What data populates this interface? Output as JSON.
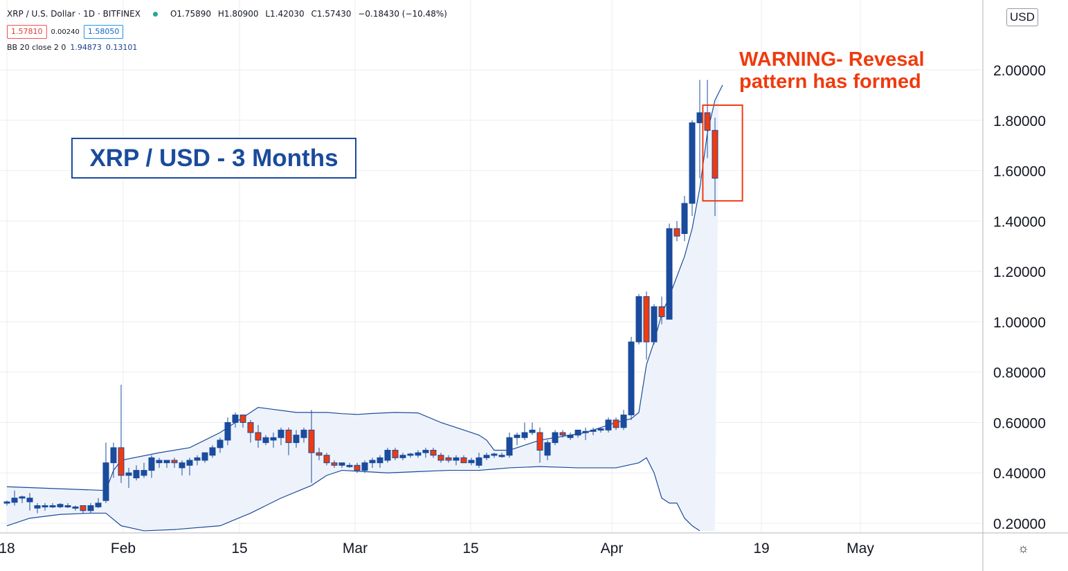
{
  "header": {
    "symbol": "XRP / U.S. Dollar · 1D · BITFINEX",
    "open": "O1.75890",
    "high": "H1.80900",
    "low": "L1.42030",
    "close": "C1.57430",
    "change": "−0.18430 (−10.48%)",
    "bid": "1.57810",
    "spread": "0.00240",
    "ask": "1.58050",
    "indicator_name": "BB 20 close 2 0",
    "indicator_v1": "1.94873",
    "indicator_v2": "0.13101"
  },
  "currency_button": "USD",
  "title_box": "XRP / USD - 3 Months",
  "warning_line1": "WARNING- Revesal",
  "warning_line2": "pattern has formed",
  "colors": {
    "up": "#1a4b9c",
    "down": "#f03a0e",
    "band": "#1a4b9c",
    "band_fill": "#eef3fb",
    "annotation": "#f03a0e"
  },
  "chart_data": {
    "type": "candlestick",
    "ylim": [
      0.17,
      2.27
    ],
    "y_ticks": [
      0.2,
      0.4,
      0.6,
      0.8,
      1.0,
      1.2,
      1.4,
      1.6,
      1.8,
      2.0
    ],
    "y_tick_labels": [
      "0.20000",
      "0.40000",
      "0.60000",
      "0.80000",
      "1.00000",
      "1.20000",
      "1.40000",
      "1.60000",
      "1.80000",
      "2.00000"
    ],
    "x_labels": [
      "18",
      "Feb",
      "15",
      "Mar",
      "15",
      "Apr",
      "19",
      "May"
    ],
    "candles": [
      {
        "o": 0.28,
        "h": 0.29,
        "l": 0.27,
        "c": 0.285
      },
      {
        "o": 0.283,
        "h": 0.33,
        "l": 0.27,
        "c": 0.3
      },
      {
        "o": 0.3,
        "h": 0.31,
        "l": 0.28,
        "c": 0.305
      },
      {
        "o": 0.285,
        "h": 0.32,
        "l": 0.25,
        "c": 0.3
      },
      {
        "o": 0.26,
        "h": 0.28,
        "l": 0.24,
        "c": 0.27
      },
      {
        "o": 0.265,
        "h": 0.28,
        "l": 0.25,
        "c": 0.27
      },
      {
        "o": 0.265,
        "h": 0.28,
        "l": 0.26,
        "c": 0.27
      },
      {
        "o": 0.265,
        "h": 0.28,
        "l": 0.26,
        "c": 0.275
      },
      {
        "o": 0.27,
        "h": 0.28,
        "l": 0.26,
        "c": 0.27
      },
      {
        "o": 0.265,
        "h": 0.27,
        "l": 0.25,
        "c": 0.265
      },
      {
        "o": 0.27,
        "h": 0.27,
        "l": 0.24,
        "c": 0.25
      },
      {
        "o": 0.25,
        "h": 0.28,
        "l": 0.24,
        "c": 0.27
      },
      {
        "o": 0.265,
        "h": 0.3,
        "l": 0.26,
        "c": 0.28
      },
      {
        "o": 0.29,
        "h": 0.52,
        "l": 0.28,
        "c": 0.44
      },
      {
        "o": 0.44,
        "h": 0.52,
        "l": 0.38,
        "c": 0.5
      },
      {
        "o": 0.5,
        "h": 0.75,
        "l": 0.36,
        "c": 0.39
      },
      {
        "o": 0.39,
        "h": 0.42,
        "l": 0.34,
        "c": 0.4
      },
      {
        "o": 0.38,
        "h": 0.43,
        "l": 0.37,
        "c": 0.41
      },
      {
        "o": 0.39,
        "h": 0.44,
        "l": 0.38,
        "c": 0.41
      },
      {
        "o": 0.41,
        "h": 0.47,
        "l": 0.38,
        "c": 0.46
      },
      {
        "o": 0.44,
        "h": 0.46,
        "l": 0.42,
        "c": 0.45
      },
      {
        "o": 0.44,
        "h": 0.45,
        "l": 0.42,
        "c": 0.45
      },
      {
        "o": 0.45,
        "h": 0.46,
        "l": 0.42,
        "c": 0.44
      },
      {
        "o": 0.42,
        "h": 0.45,
        "l": 0.39,
        "c": 0.44
      },
      {
        "o": 0.43,
        "h": 0.46,
        "l": 0.39,
        "c": 0.45
      },
      {
        "o": 0.45,
        "h": 0.47,
        "l": 0.43,
        "c": 0.46
      },
      {
        "o": 0.45,
        "h": 0.48,
        "l": 0.44,
        "c": 0.48
      },
      {
        "o": 0.47,
        "h": 0.51,
        "l": 0.46,
        "c": 0.5
      },
      {
        "o": 0.5,
        "h": 0.54,
        "l": 0.48,
        "c": 0.53
      },
      {
        "o": 0.53,
        "h": 0.62,
        "l": 0.51,
        "c": 0.6
      },
      {
        "o": 0.6,
        "h": 0.64,
        "l": 0.58,
        "c": 0.63
      },
      {
        "o": 0.63,
        "h": 0.63,
        "l": 0.58,
        "c": 0.6
      },
      {
        "o": 0.6,
        "h": 0.61,
        "l": 0.52,
        "c": 0.56
      },
      {
        "o": 0.56,
        "h": 0.59,
        "l": 0.5,
        "c": 0.53
      },
      {
        "o": 0.52,
        "h": 0.55,
        "l": 0.51,
        "c": 0.54
      },
      {
        "o": 0.53,
        "h": 0.56,
        "l": 0.5,
        "c": 0.54
      },
      {
        "o": 0.54,
        "h": 0.58,
        "l": 0.51,
        "c": 0.57
      },
      {
        "o": 0.57,
        "h": 0.58,
        "l": 0.47,
        "c": 0.52
      },
      {
        "o": 0.52,
        "h": 0.57,
        "l": 0.5,
        "c": 0.55
      },
      {
        "o": 0.54,
        "h": 0.58,
        "l": 0.52,
        "c": 0.57
      },
      {
        "o": 0.57,
        "h": 0.65,
        "l": 0.36,
        "c": 0.48
      },
      {
        "o": 0.48,
        "h": 0.5,
        "l": 0.45,
        "c": 0.47
      },
      {
        "o": 0.47,
        "h": 0.48,
        "l": 0.43,
        "c": 0.44
      },
      {
        "o": 0.44,
        "h": 0.45,
        "l": 0.42,
        "c": 0.43
      },
      {
        "o": 0.43,
        "h": 0.44,
        "l": 0.42,
        "c": 0.44
      },
      {
        "o": 0.43,
        "h": 0.44,
        "l": 0.42,
        "c": 0.43
      },
      {
        "o": 0.43,
        "h": 0.44,
        "l": 0.4,
        "c": 0.41
      },
      {
        "o": 0.41,
        "h": 0.45,
        "l": 0.4,
        "c": 0.44
      },
      {
        "o": 0.44,
        "h": 0.46,
        "l": 0.42,
        "c": 0.45
      },
      {
        "o": 0.44,
        "h": 0.47,
        "l": 0.42,
        "c": 0.46
      },
      {
        "o": 0.45,
        "h": 0.5,
        "l": 0.44,
        "c": 0.49
      },
      {
        "o": 0.49,
        "h": 0.5,
        "l": 0.45,
        "c": 0.46
      },
      {
        "o": 0.46,
        "h": 0.48,
        "l": 0.45,
        "c": 0.47
      },
      {
        "o": 0.47,
        "h": 0.48,
        "l": 0.46,
        "c": 0.475
      },
      {
        "o": 0.47,
        "h": 0.49,
        "l": 0.46,
        "c": 0.48
      },
      {
        "o": 0.48,
        "h": 0.5,
        "l": 0.46,
        "c": 0.49
      },
      {
        "o": 0.49,
        "h": 0.5,
        "l": 0.46,
        "c": 0.47
      },
      {
        "o": 0.47,
        "h": 0.48,
        "l": 0.44,
        "c": 0.45
      },
      {
        "o": 0.46,
        "h": 0.47,
        "l": 0.44,
        "c": 0.45
      },
      {
        "o": 0.45,
        "h": 0.47,
        "l": 0.43,
        "c": 0.46
      },
      {
        "o": 0.46,
        "h": 0.47,
        "l": 0.44,
        "c": 0.44
      },
      {
        "o": 0.44,
        "h": 0.46,
        "l": 0.43,
        "c": 0.45
      },
      {
        "o": 0.43,
        "h": 0.48,
        "l": 0.42,
        "c": 0.46
      },
      {
        "o": 0.46,
        "h": 0.48,
        "l": 0.45,
        "c": 0.47
      },
      {
        "o": 0.47,
        "h": 0.48,
        "l": 0.46,
        "c": 0.475
      },
      {
        "o": 0.47,
        "h": 0.48,
        "l": 0.46,
        "c": 0.47
      },
      {
        "o": 0.47,
        "h": 0.56,
        "l": 0.46,
        "c": 0.54
      },
      {
        "o": 0.54,
        "h": 0.56,
        "l": 0.51,
        "c": 0.55
      },
      {
        "o": 0.54,
        "h": 0.6,
        "l": 0.53,
        "c": 0.56
      },
      {
        "o": 0.56,
        "h": 0.6,
        "l": 0.55,
        "c": 0.57
      },
      {
        "o": 0.56,
        "h": 0.58,
        "l": 0.44,
        "c": 0.49
      },
      {
        "o": 0.47,
        "h": 0.53,
        "l": 0.45,
        "c": 0.52
      },
      {
        "o": 0.52,
        "h": 0.57,
        "l": 0.51,
        "c": 0.56
      },
      {
        "o": 0.56,
        "h": 0.57,
        "l": 0.54,
        "c": 0.55
      },
      {
        "o": 0.54,
        "h": 0.56,
        "l": 0.53,
        "c": 0.55
      },
      {
        "o": 0.55,
        "h": 0.57,
        "l": 0.54,
        "c": 0.57
      },
      {
        "o": 0.56,
        "h": 0.58,
        "l": 0.53,
        "c": 0.565
      },
      {
        "o": 0.565,
        "h": 0.58,
        "l": 0.55,
        "c": 0.57
      },
      {
        "o": 0.57,
        "h": 0.58,
        "l": 0.56,
        "c": 0.575
      },
      {
        "o": 0.57,
        "h": 0.62,
        "l": 0.56,
        "c": 0.61
      },
      {
        "o": 0.61,
        "h": 0.62,
        "l": 0.57,
        "c": 0.58
      },
      {
        "o": 0.58,
        "h": 0.65,
        "l": 0.57,
        "c": 0.63
      },
      {
        "o": 0.63,
        "h": 0.94,
        "l": 0.61,
        "c": 0.92
      },
      {
        "o": 0.92,
        "h": 1.11,
        "l": 0.91,
        "c": 1.1
      },
      {
        "o": 1.1,
        "h": 1.12,
        "l": 0.85,
        "c": 0.92
      },
      {
        "o": 0.92,
        "h": 1.07,
        "l": 0.91,
        "c": 1.06
      },
      {
        "o": 1.06,
        "h": 1.1,
        "l": 0.99,
        "c": 1.02
      },
      {
        "o": 1.01,
        "h": 1.39,
        "l": 1.01,
        "c": 1.37
      },
      {
        "o": 1.37,
        "h": 1.4,
        "l": 1.32,
        "c": 1.34
      },
      {
        "o": 1.35,
        "h": 1.5,
        "l": 1.32,
        "c": 1.47
      },
      {
        "o": 1.47,
        "h": 1.8,
        "l": 1.42,
        "c": 1.79
      },
      {
        "o": 1.79,
        "h": 1.96,
        "l": 1.57,
        "c": 1.83
      },
      {
        "o": 1.83,
        "h": 1.96,
        "l": 1.65,
        "c": 1.76
      },
      {
        "o": 1.76,
        "h": 1.81,
        "l": 1.42,
        "c": 1.57
      }
    ],
    "bb_upper": [
      [
        0,
        0.345
      ],
      [
        13,
        0.33
      ],
      [
        14,
        0.41
      ],
      [
        15,
        0.45
      ],
      [
        20,
        0.48
      ],
      [
        24,
        0.5
      ],
      [
        28,
        0.56
      ],
      [
        31,
        0.62
      ],
      [
        33,
        0.66
      ],
      [
        38,
        0.64
      ],
      [
        42,
        0.64
      ],
      [
        44,
        0.635
      ],
      [
        46,
        0.632
      ],
      [
        48,
        0.636
      ],
      [
        51,
        0.64
      ],
      [
        54,
        0.638
      ],
      [
        57,
        0.6
      ],
      [
        60,
        0.57
      ],
      [
        62,
        0.55
      ],
      [
        63,
        0.53
      ],
      [
        64,
        0.49
      ],
      [
        66,
        0.49
      ],
      [
        68,
        0.51
      ],
      [
        70,
        0.53
      ],
      [
        72,
        0.54
      ],
      [
        74,
        0.55
      ],
      [
        76,
        0.56
      ],
      [
        78,
        0.58
      ],
      [
        80,
        0.6
      ],
      [
        82,
        0.615
      ],
      [
        83,
        0.64
      ],
      [
        84,
        0.83
      ],
      [
        85,
        0.92
      ],
      [
        86,
        1.03
      ],
      [
        87,
        1.1
      ],
      [
        89,
        1.26
      ],
      [
        90,
        1.37
      ],
      [
        91,
        1.53
      ],
      [
        92,
        1.75
      ],
      [
        93,
        1.88
      ],
      [
        94,
        1.94
      ]
    ],
    "bb_lower": [
      [
        0,
        0.19
      ],
      [
        3,
        0.22
      ],
      [
        7,
        0.235
      ],
      [
        11,
        0.24
      ],
      [
        13,
        0.24
      ],
      [
        15,
        0.19
      ],
      [
        18,
        0.17
      ],
      [
        22,
        0.175
      ],
      [
        28,
        0.19
      ],
      [
        32,
        0.24
      ],
      [
        36,
        0.3
      ],
      [
        40,
        0.35
      ],
      [
        42,
        0.39
      ],
      [
        44,
        0.41
      ],
      [
        47,
        0.405
      ],
      [
        50,
        0.4
      ],
      [
        54,
        0.405
      ],
      [
        58,
        0.41
      ],
      [
        62,
        0.41
      ],
      [
        64,
        0.415
      ],
      [
        66,
        0.42
      ],
      [
        70,
        0.425
      ],
      [
        75,
        0.42
      ],
      [
        80,
        0.42
      ],
      [
        83,
        0.44
      ],
      [
        84,
        0.46
      ],
      [
        85,
        0.4
      ],
      [
        86,
        0.3
      ],
      [
        87,
        0.28
      ],
      [
        88,
        0.28
      ],
      [
        89,
        0.22
      ],
      [
        90,
        0.19
      ],
      [
        91,
        0.17
      ]
    ],
    "annotation_box": {
      "x_from": 91.4,
      "x_to": 96.6,
      "y_from": 1.48,
      "y_to": 1.86
    }
  }
}
